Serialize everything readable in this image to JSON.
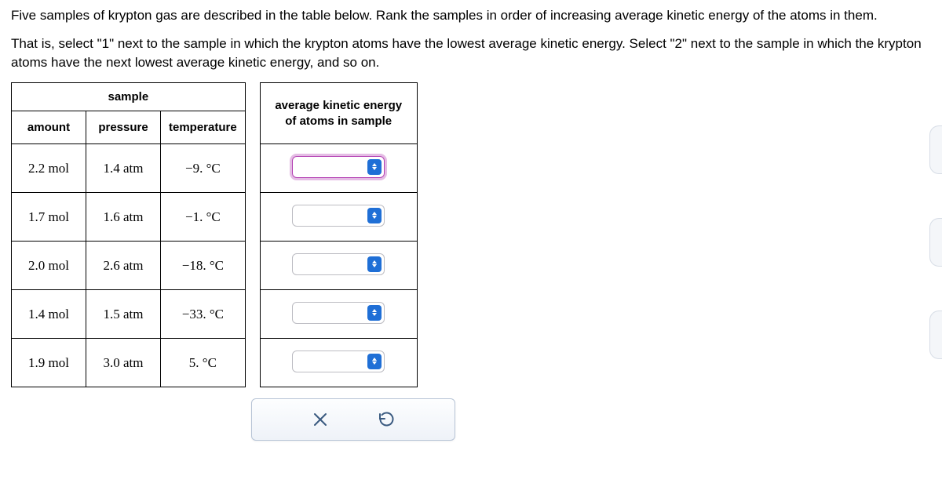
{
  "question": {
    "para1": "Five samples of krypton gas are described in the table below. Rank the samples in order of increasing average kinetic energy of the atoms in them.",
    "para2": "That is, select \"1\" next to the sample in which the krypton atoms have the lowest average kinetic energy. Select \"2\" next to the sample in which the krypton atoms have the next lowest average kinetic energy, and so on."
  },
  "headers": {
    "sample": "sample",
    "amount": "amount",
    "pressure": "pressure",
    "temperature": "temperature",
    "ke": "average kinetic energy of atoms in sample"
  },
  "rows": [
    {
      "amount": "2.2 mol",
      "pressure": "1.4 atm",
      "temperature": "−9. °C",
      "focused": true
    },
    {
      "amount": "1.7 mol",
      "pressure": "1.6 atm",
      "temperature": "−1. °C",
      "focused": false
    },
    {
      "amount": "2.0 mol",
      "pressure": "2.6 atm",
      "temperature": "−18. °C",
      "focused": false
    },
    {
      "amount": "1.4 mol",
      "pressure": "1.5 atm",
      "temperature": "−33. °C",
      "focused": false
    },
    {
      "amount": "1.9 mol",
      "pressure": "3.0 atm",
      "temperature": "5. °C",
      "focused": false
    }
  ],
  "colors": {
    "border": "#000000",
    "selectBorder": "#bcbcc2",
    "selectFocus": "#b33fb3",
    "stepperBg": "#1f6fd6",
    "controlBorder": "#b7c4d6",
    "controlText": "#3a5a80"
  }
}
